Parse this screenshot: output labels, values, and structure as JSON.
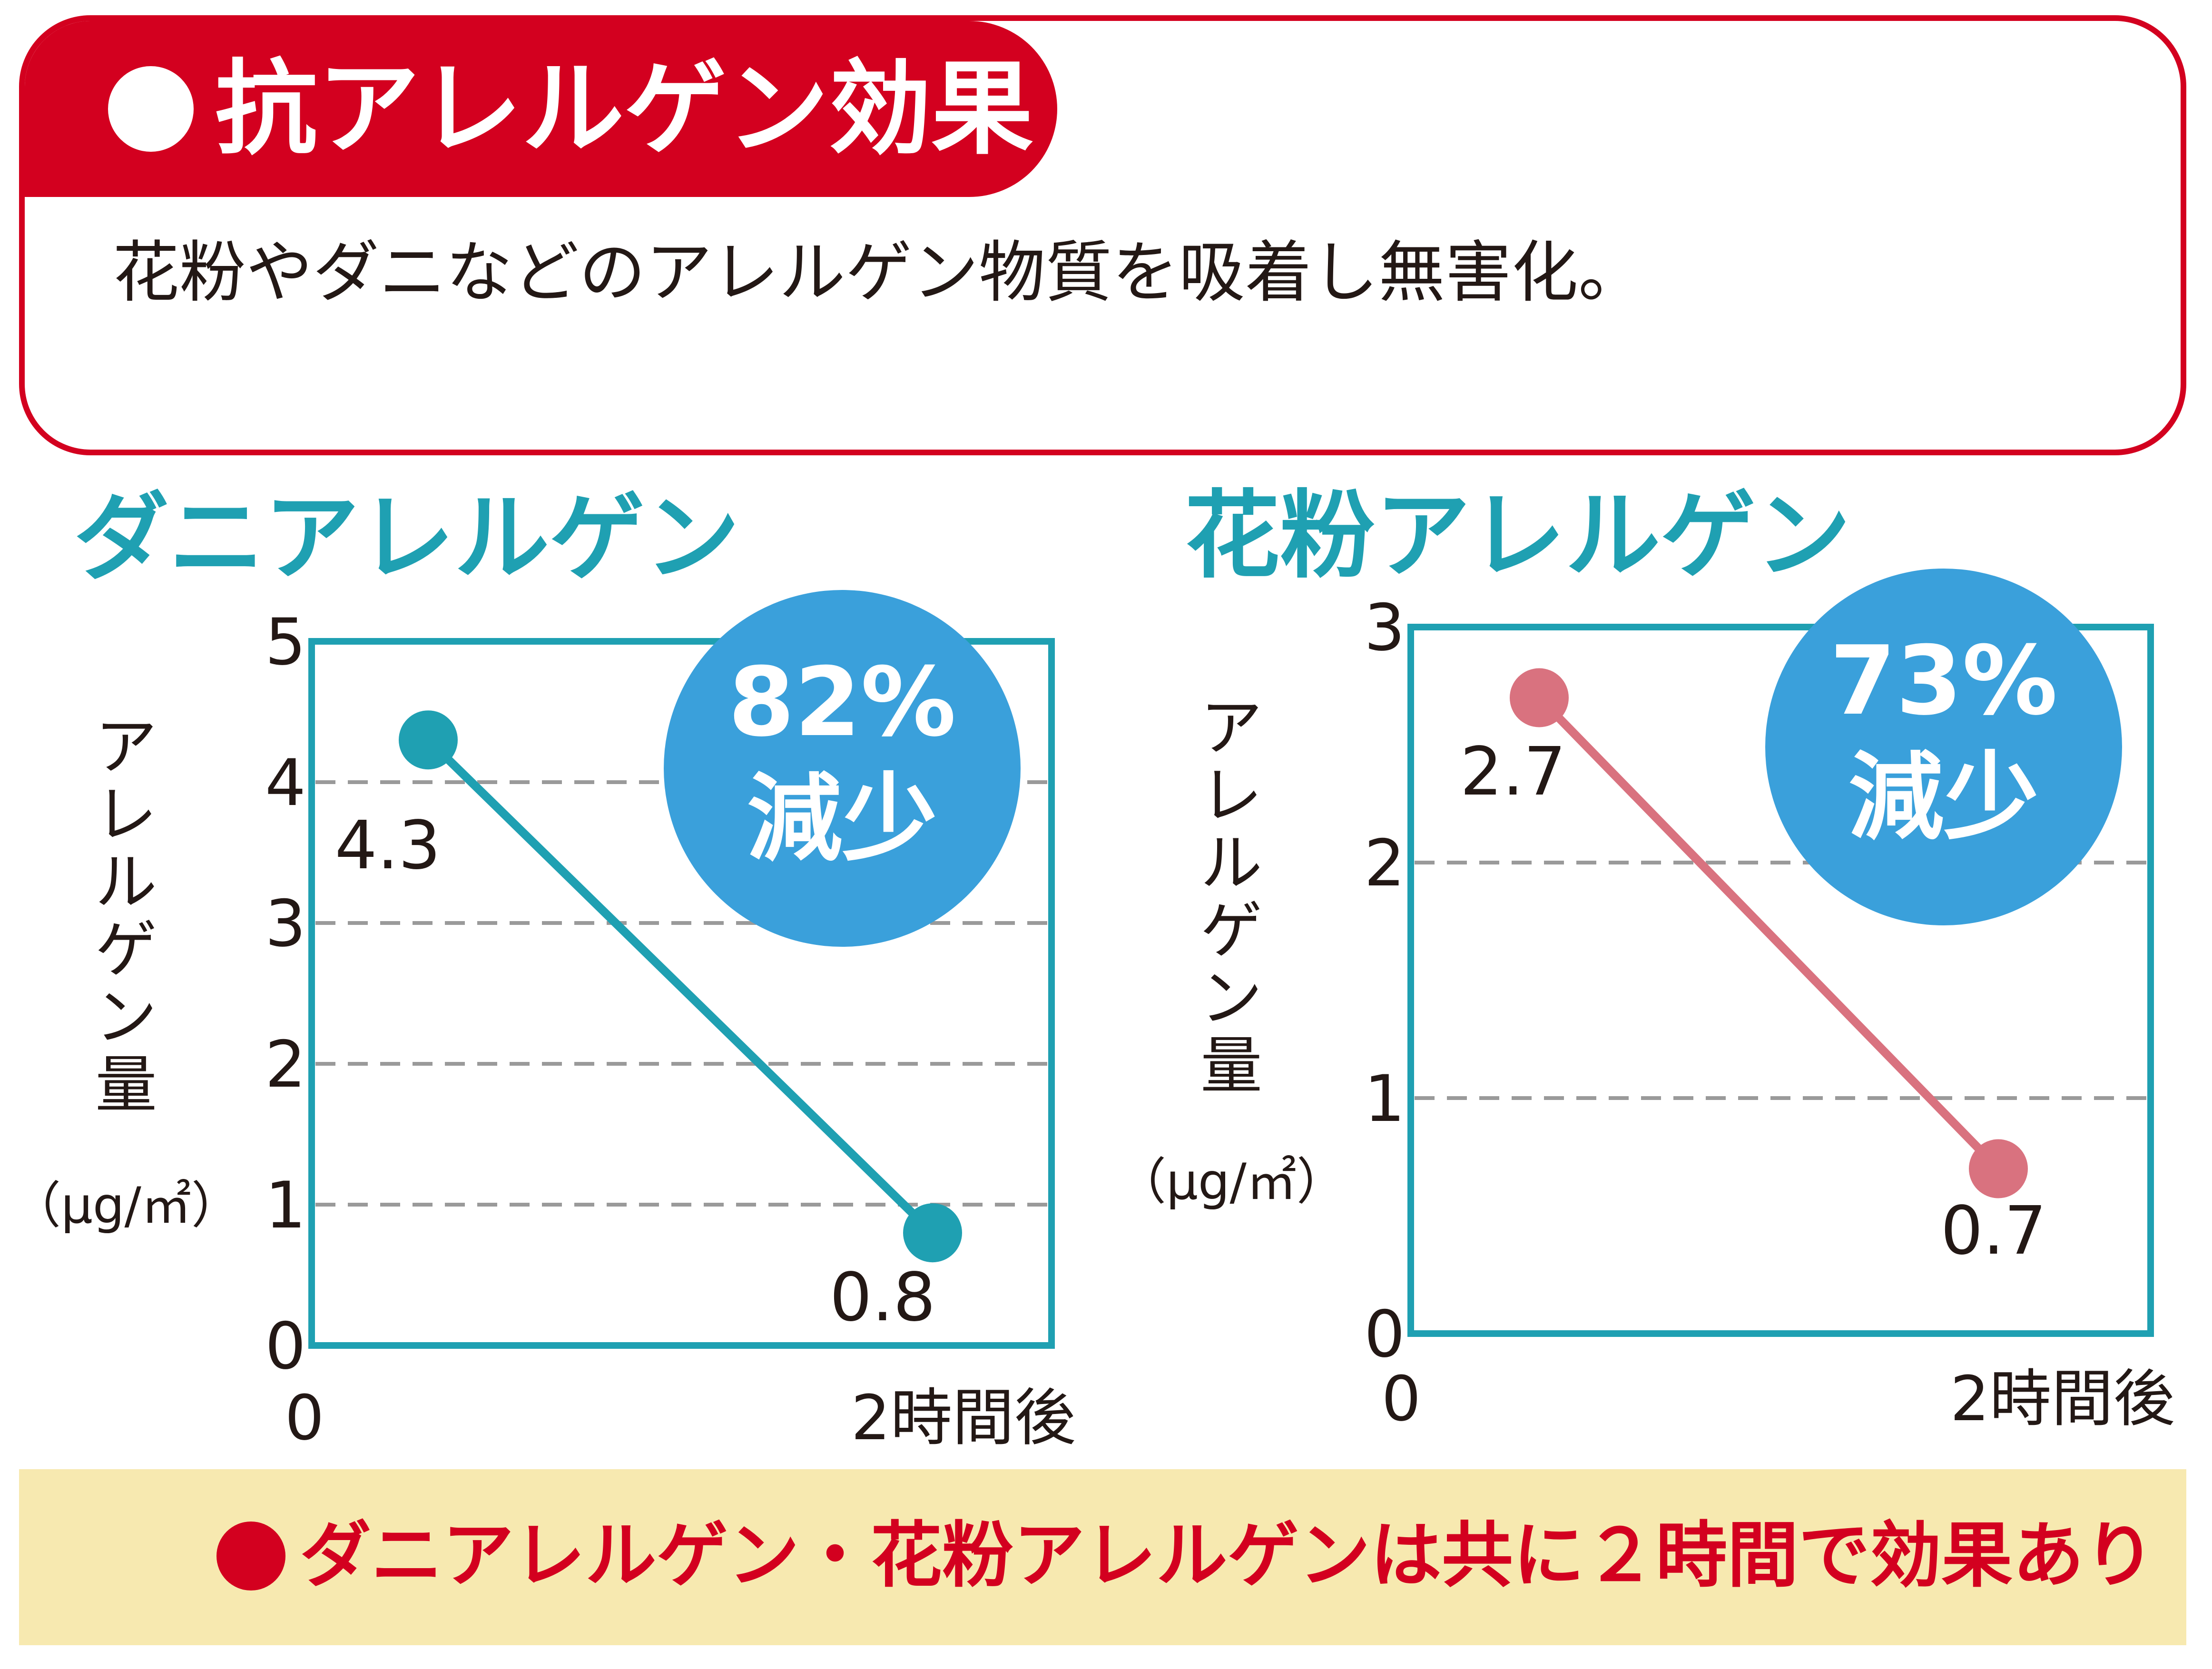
{
  "header": {
    "title": "抗アレルゲン効果",
    "description": "花粉やダニなどのアレルゲン物質を吸着し無害化。"
  },
  "footer": {
    "note": "ダニアレルゲン・花粉アレルゲンは共に２時間で効果あり"
  },
  "colors": {
    "brand_red": "#d3001f",
    "teal": "#1fa0b2",
    "pink": "#d9727f",
    "badge_blue": "#3aa0db",
    "footer_bg": "#f7e9b0"
  },
  "chart_data": [
    {
      "type": "line",
      "title": "ダニアレルゲン",
      "ylabel": "アレルゲン量",
      "yunit": "（μg/㎡）",
      "categories": [
        "0",
        "2時間後"
      ],
      "series": [
        {
          "values": [
            4.3,
            0.8
          ],
          "labels": [
            "4.3",
            "0.8"
          ]
        }
      ],
      "ylim": [
        0,
        5
      ],
      "yticks": [
        "0",
        "1",
        "2",
        "3",
        "4",
        "5"
      ],
      "grid": "dashed horizontal",
      "badge": {
        "percent": "82%",
        "text": "減少"
      }
    },
    {
      "type": "line",
      "title": "花粉アレルゲン",
      "ylabel": "アレルゲン量",
      "yunit": "（μg/㎡）",
      "categories": [
        "0",
        "2時間後"
      ],
      "series": [
        {
          "values": [
            2.7,
            0.7
          ],
          "labels": [
            "2.7",
            "0.7"
          ]
        }
      ],
      "ylim": [
        0,
        3
      ],
      "yticks": [
        "0",
        "1",
        "2",
        "3"
      ],
      "grid": "dashed horizontal",
      "badge": {
        "percent": "73%",
        "text": "減少"
      }
    }
  ]
}
